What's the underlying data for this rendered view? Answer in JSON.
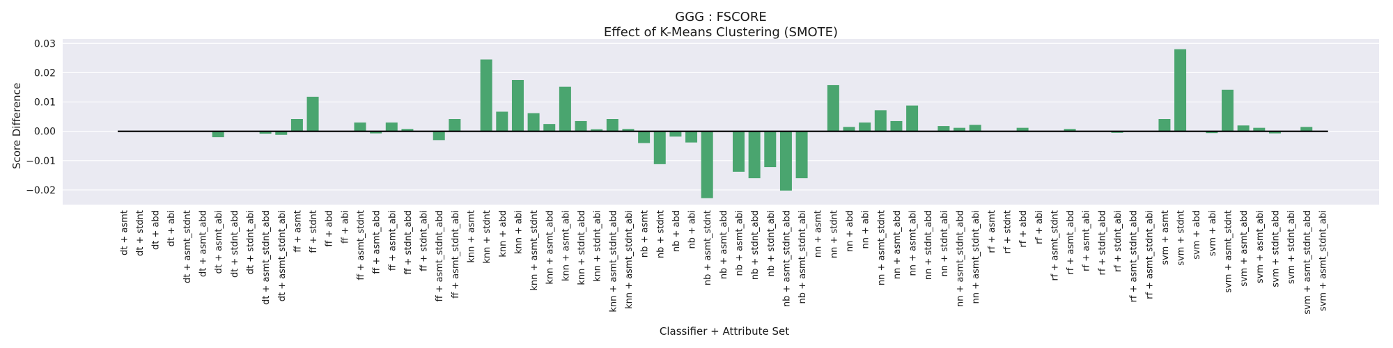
{
  "chart_data": {
    "type": "bar",
    "title": "GGG : FSCORE",
    "subtitle": "Effect of K-Means Clustering (SMOTE)",
    "xlabel": "Classifier + Attribute Set",
    "ylabel": "Score Difference",
    "ylim": [
      -0.025,
      0.0315
    ],
    "yticks": [
      "0.03",
      "0.02",
      "0.01",
      "0.00",
      "−0.01",
      "−0.02"
    ],
    "ytick_values": [
      0.03,
      0.02,
      0.01,
      0.0,
      -0.01,
      -0.02
    ],
    "grid": true,
    "legend": "none",
    "colors": {
      "bar": "#4aa56f",
      "background": "#eaeaf2",
      "grid": "#ffffff",
      "zero_line": "#000000"
    },
    "categories": [
      "dt + asmt",
      "dt + stdnt",
      "dt + abd",
      "dt + abi",
      "dt + asmt_stdnt",
      "dt + asmt_abd",
      "dt + asmt_abi",
      "dt + stdnt_abd",
      "dt + stdnt_abi",
      "dt + asmt_stdnt_abd",
      "dt + asmt_stdnt_abi",
      "ff + asmt",
      "ff + stdnt",
      "ff + abd",
      "ff + abi",
      "ff + asmt_stdnt",
      "ff + asmt_abd",
      "ff + asmt_abi",
      "ff + stdnt_abd",
      "ff + stdnt_abi",
      "ff + asmt_stdnt_abd",
      "ff + asmt_stdnt_abi",
      "knn + asmt",
      "knn + stdnt",
      "knn + abd",
      "knn + abi",
      "knn + asmt_stdnt",
      "knn + asmt_abd",
      "knn + asmt_abi",
      "knn + stdnt_abd",
      "knn + stdnt_abi",
      "knn + asmt_stdnt_abd",
      "knn + asmt_stdnt_abi",
      "nb + asmt",
      "nb + stdnt",
      "nb + abd",
      "nb + abi",
      "nb + asmt_stdnt",
      "nb + asmt_abd",
      "nb + asmt_abi",
      "nb + stdnt_abd",
      "nb + stdnt_abi",
      "nb + asmt_stdnt_abd",
      "nb + asmt_stdnt_abi",
      "nn + asmt",
      "nn + stdnt",
      "nn + abd",
      "nn + abi",
      "nn + asmt_stdnt",
      "nn + asmt_abd",
      "nn + asmt_abi",
      "nn + stdnt_abd",
      "nn + stdnt_abi",
      "nn + asmt_stdnt_abd",
      "nn + asmt_stdnt_abi",
      "rf + asmt",
      "rf + stdnt",
      "rf + abd",
      "rf + abi",
      "rf + asmt_stdnt",
      "rf + asmt_abd",
      "rf + asmt_abi",
      "rf + stdnt_abd",
      "rf + stdnt_abi",
      "rf + asmt_stdnt_abd",
      "rf + asmt_stdnt_abi",
      "svm + asmt",
      "svm + stdnt",
      "svm + abd",
      "svm + abi",
      "svm + asmt_stdnt",
      "svm + asmt_abd",
      "svm + asmt_abi",
      "svm + stdnt_abd",
      "svm + stdnt_abi",
      "svm + asmt_stdnt_abd",
      "svm + asmt_stdnt_abi"
    ],
    "values": [
      0,
      0,
      0,
      0,
      0,
      0,
      -0.002,
      0,
      0,
      -0.0008,
      -0.0012,
      0.0042,
      0.0118,
      0,
      0,
      0.003,
      -0.0007,
      0.003,
      0.0008,
      0,
      -0.003,
      0.0042,
      0,
      0.0245,
      0.0067,
      0.0175,
      0.0062,
      0.0025,
      0.0152,
      0.0035,
      0.0007,
      0.0042,
      0.0008,
      -0.004,
      -0.0112,
      -0.0018,
      -0.0038,
      -0.0228,
      0,
      -0.0138,
      -0.016,
      -0.0122,
      -0.0202,
      -0.016,
      0,
      0.0158,
      0.0015,
      0.003,
      0.0072,
      0.0035,
      0.0088,
      0,
      0.0018,
      0.0012,
      0.0022,
      0,
      0,
      0.0012,
      0,
      0,
      0.0008,
      0,
      0,
      -0.0005,
      0,
      0,
      0.0042,
      0.028,
      0,
      -0.0006,
      0.0142,
      0.002,
      0.0012,
      -0.0007,
      0,
      0.0015,
      0
    ]
  }
}
